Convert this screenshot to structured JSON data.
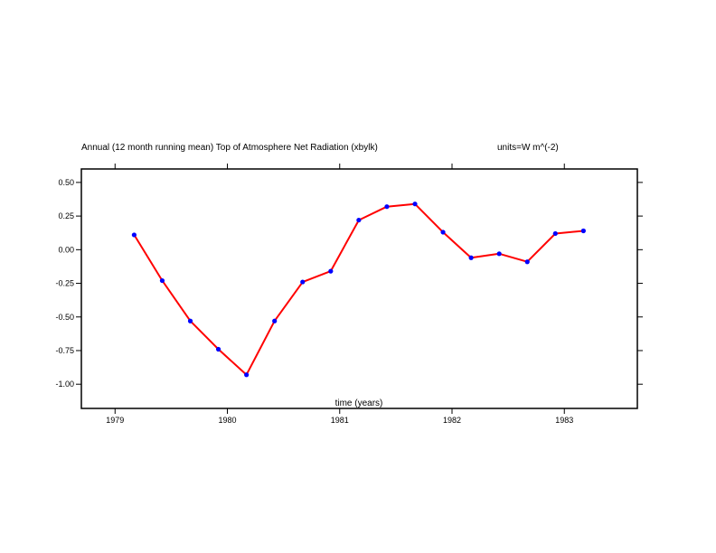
{
  "chart_data": {
    "type": "line",
    "title": "Annual (12 month running mean) Top of Atmosphere Net Radiation (xbylk)",
    "units": "units=W m^(-2)",
    "xlabel": "time (years)",
    "ylabel": "",
    "xlim": [
      1978.7,
      1983.65
    ],
    "ylim": [
      -1.18,
      0.6
    ],
    "x_ticks": [
      1979,
      1980,
      1981,
      1982,
      1983
    ],
    "x_tick_labels": [
      "1979",
      "1980",
      "1981",
      "1982",
      "1983"
    ],
    "y_ticks": [
      0.5,
      0.25,
      0.0,
      -0.25,
      -0.5,
      -0.75,
      -1.0
    ],
    "y_tick_labels": [
      "0.50",
      "0.25",
      "0.00",
      "-0.25",
      "-0.50",
      "-0.75",
      "-1.00"
    ],
    "grid": false,
    "series": [
      {
        "line_color": "#ff0000",
        "marker_color": "#0000ff",
        "x": [
          1979.17,
          1979.42,
          1979.67,
          1979.92,
          1980.17,
          1980.42,
          1980.67,
          1980.92,
          1981.17,
          1981.42,
          1981.67,
          1981.92,
          1982.17,
          1982.42,
          1982.67,
          1982.92,
          1983.17
        ],
        "y": [
          0.11,
          -0.23,
          -0.53,
          -0.74,
          -0.93,
          -0.53,
          -0.24,
          -0.16,
          0.22,
          0.32,
          0.34,
          0.13,
          -0.06,
          -0.03,
          -0.09,
          0.12,
          0.14
        ]
      }
    ]
  }
}
